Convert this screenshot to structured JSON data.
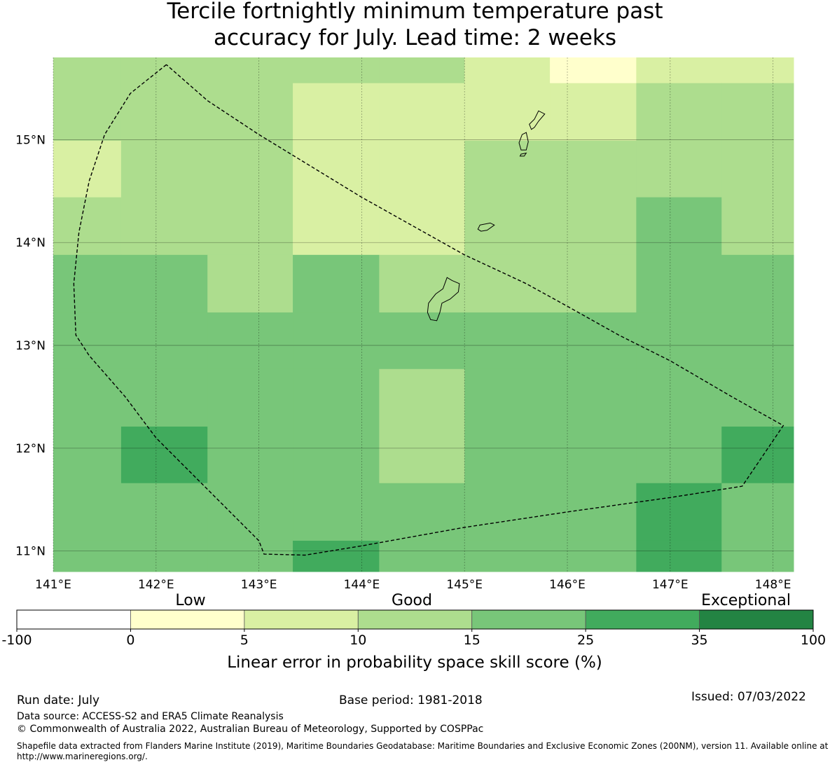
{
  "title_line1": "Tercile fortnightly minimum temperature past",
  "title_line2": "accuracy for July. Lead time: 2 weeks",
  "map": {
    "lon_range": [
      141.0,
      148.2
    ],
    "lat_range": [
      10.8,
      15.8
    ],
    "lon_ticks": [
      {
        "value": 141,
        "label": "141°E"
      },
      {
        "value": 142,
        "label": "142°E"
      },
      {
        "value": 143,
        "label": "143°E"
      },
      {
        "value": 144,
        "label": "144°E"
      },
      {
        "value": 145,
        "label": "145°E"
      },
      {
        "value": 146,
        "label": "146°E"
      },
      {
        "value": 147,
        "label": "147°E"
      },
      {
        "value": 148,
        "label": "148°E"
      }
    ],
    "lat_ticks": [
      {
        "value": 15,
        "label": "15°N"
      },
      {
        "value": 14,
        "label": "14°N"
      },
      {
        "value": 13,
        "label": "13°N"
      },
      {
        "value": 12,
        "label": "12°N"
      },
      {
        "value": 11,
        "label": "11°N"
      }
    ],
    "grid": true,
    "cell_columns_lon": [
      141.0,
      141.66,
      142.5,
      143.33,
      144.17,
      145.0,
      145.83,
      146.67,
      147.5,
      148.2
    ],
    "cell_rows_lat": [
      15.8,
      15.55,
      14.99,
      14.44,
      13.88,
      13.32,
      12.77,
      12.21,
      11.66,
      11.1,
      10.8
    ],
    "cell_class_grid": [
      [
        3,
        3,
        3,
        3,
        3,
        2,
        1,
        2,
        2
      ],
      [
        3,
        3,
        3,
        2,
        2,
        2,
        2,
        3,
        3
      ],
      [
        2,
        3,
        3,
        2,
        2,
        3,
        3,
        3,
        3
      ],
      [
        3,
        3,
        3,
        2,
        2,
        3,
        3,
        4,
        3
      ],
      [
        4,
        4,
        3,
        4,
        3,
        3,
        3,
        4,
        4
      ],
      [
        4,
        4,
        4,
        4,
        4,
        4,
        4,
        4,
        4
      ],
      [
        4,
        4,
        4,
        4,
        3,
        4,
        4,
        4,
        4
      ],
      [
        4,
        5,
        4,
        4,
        3,
        4,
        4,
        4,
        5
      ],
      [
        4,
        4,
        4,
        4,
        4,
        4,
        4,
        5,
        4
      ],
      [
        4,
        4,
        4,
        5,
        4,
        4,
        4,
        5,
        4
      ]
    ],
    "eez_boundary": [
      [
        142.1,
        15.73
      ],
      [
        141.75,
        15.45
      ],
      [
        141.5,
        15.05
      ],
      [
        141.35,
        14.6
      ],
      [
        141.25,
        14.1
      ],
      [
        141.2,
        13.6
      ],
      [
        141.22,
        13.1
      ],
      [
        141.35,
        12.9
      ],
      [
        141.7,
        12.5
      ],
      [
        142.0,
        12.1
      ],
      [
        142.5,
        11.6
      ],
      [
        143.0,
        11.1
      ],
      [
        143.05,
        10.97
      ],
      [
        143.45,
        10.96
      ],
      [
        144.0,
        11.05
      ],
      [
        145.0,
        11.23
      ],
      [
        146.0,
        11.38
      ],
      [
        147.0,
        11.52
      ],
      [
        147.7,
        11.63
      ],
      [
        148.1,
        12.22
      ],
      [
        147.6,
        12.5
      ],
      [
        147.0,
        12.85
      ],
      [
        146.5,
        13.1
      ],
      [
        146.0,
        13.38
      ],
      [
        145.6,
        13.6
      ],
      [
        145.0,
        13.88
      ],
      [
        144.0,
        14.44
      ],
      [
        143.0,
        15.05
      ],
      [
        142.5,
        15.38
      ],
      [
        142.1,
        15.73
      ]
    ],
    "islands": [
      [
        [
          145.72,
          15.28
        ],
        [
          145.78,
          15.25
        ],
        [
          145.72,
          15.18
        ],
        [
          145.68,
          15.12
        ],
        [
          145.65,
          15.1
        ],
        [
          145.63,
          15.15
        ],
        [
          145.68,
          15.2
        ],
        [
          145.72,
          15.28
        ]
      ],
      [
        [
          145.6,
          15.07
        ],
        [
          145.62,
          14.98
        ],
        [
          145.6,
          14.9
        ],
        [
          145.55,
          14.9
        ],
        [
          145.53,
          14.97
        ],
        [
          145.56,
          15.05
        ],
        [
          145.6,
          15.07
        ]
      ],
      [
        [
          145.55,
          14.86
        ],
        [
          145.6,
          14.87
        ],
        [
          145.58,
          14.84
        ],
        [
          145.54,
          14.84
        ],
        [
          145.55,
          14.86
        ]
      ],
      [
        [
          145.15,
          14.17
        ],
        [
          145.25,
          14.19
        ],
        [
          145.29,
          14.17
        ],
        [
          145.22,
          14.12
        ],
        [
          145.16,
          14.11
        ],
        [
          145.13,
          14.13
        ],
        [
          145.15,
          14.17
        ]
      ],
      [
        [
          144.83,
          13.66
        ],
        [
          144.88,
          13.63
        ],
        [
          144.95,
          13.6
        ],
        [
          144.94,
          13.52
        ],
        [
          144.86,
          13.45
        ],
        [
          144.78,
          13.41
        ],
        [
          144.76,
          13.32
        ],
        [
          144.73,
          13.24
        ],
        [
          144.67,
          13.25
        ],
        [
          144.64,
          13.32
        ],
        [
          144.65,
          13.41
        ],
        [
          144.68,
          13.45
        ],
        [
          144.72,
          13.5
        ],
        [
          144.79,
          13.55
        ],
        [
          144.83,
          13.66
        ]
      ]
    ]
  },
  "colorbar": {
    "category_labels": [
      "Low",
      "Good",
      "Exceptional"
    ],
    "tick_labels": [
      "-100",
      "0",
      "5",
      "10",
      "15",
      "25",
      "35",
      "100"
    ],
    "colors": [
      "#ffffff",
      "#ffffcc",
      "#d9f0a3",
      "#addd8e",
      "#78c679",
      "#41ab5d",
      "#238443"
    ],
    "title": "Linear error in probability space skill score (%)"
  },
  "footer": {
    "run_date": "Run date: July",
    "base_period": "Base period: 1981-2018",
    "issued": "Issued: 07/03/2022",
    "data_source": "Data source: ACCESS-S2 and ERA5 Climate Reanalysis",
    "copyright": "© Commonwealth of Australia 2022, Australian Bureau of Meteorology, Supported by COSPPac",
    "shapefile": "Shapefile data extracted from Flanders Marine Institute (2019), Maritime Boundaries Geodatabase: Maritime Boundaries and Exclusive Economic Zones (200NM), version 11. Available online at http://www.marineregions.org/."
  }
}
